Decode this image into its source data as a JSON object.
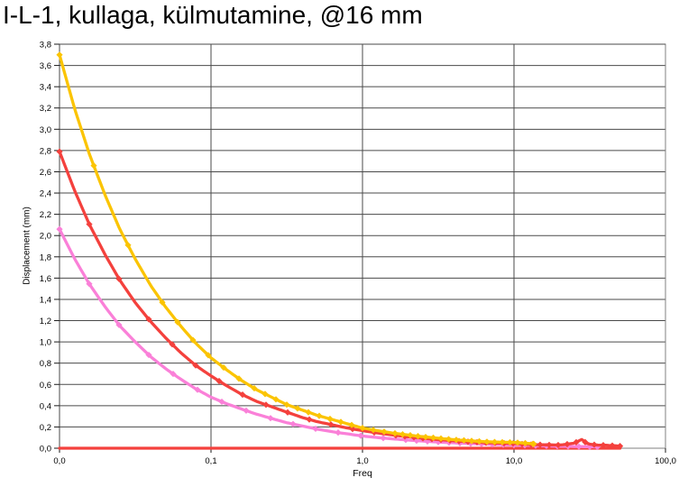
{
  "title": "I-L-1, kullaga, külmutamine, @16 mm",
  "chart_data": {
    "type": "line",
    "title": "I-L-1, kullaga, külmutamine, @16 mm",
    "xlabel": "Freq",
    "ylabel": "Displacement (mm)",
    "x_scale": "log",
    "xlim": [
      0.01,
      100
    ],
    "ylim": [
      0.0,
      3.8
    ],
    "grid": true,
    "legend": "none",
    "x_ticks": [
      {
        "value": 0.01,
        "label": "0,0"
      },
      {
        "value": 0.1,
        "label": "0,1"
      },
      {
        "value": 1.0,
        "label": "1,0"
      },
      {
        "value": 10.0,
        "label": "10,0"
      },
      {
        "value": 100.0,
        "label": "100,0"
      }
    ],
    "y_ticks": [
      "0,0",
      "0,2",
      "0,4",
      "0,6",
      "0,8",
      "1,0",
      "1,2",
      "1,4",
      "1,6",
      "1,8",
      "2,0",
      "2,2",
      "2,4",
      "2,6",
      "2,8",
      "3,0",
      "3,2",
      "3,4",
      "3,6",
      "3,8"
    ],
    "y_tick_step": 0.2,
    "colors": {
      "grid": "#4a4a4a",
      "frame": "#828282",
      "tick": "#1a1a1a",
      "yellow_series": "#fbc402",
      "red_series": "#f4413d",
      "pink_series": "#fa80d8"
    },
    "series": [
      {
        "name": "red-baseline",
        "color": "#f4413d",
        "marker": "none",
        "points": [
          [
            0.01,
            0.0
          ],
          [
            50.1,
            0.0
          ]
        ]
      },
      {
        "name": "pink-series",
        "color": "#fa80d8",
        "marker": "diamond",
        "points": [
          [
            0.01,
            2.06
          ],
          [
            0.0126,
            1.78
          ],
          [
            0.0158,
            1.54
          ],
          [
            0.02,
            1.33
          ],
          [
            0.025,
            1.15
          ],
          [
            0.0316,
            1.0
          ],
          [
            0.04,
            0.86
          ],
          [
            0.05,
            0.75
          ],
          [
            0.063,
            0.65
          ],
          [
            0.079,
            0.56
          ],
          [
            0.1,
            0.48
          ],
          [
            0.126,
            0.42
          ],
          [
            0.158,
            0.37
          ],
          [
            0.2,
            0.32
          ],
          [
            0.251,
            0.28
          ],
          [
            0.316,
            0.24
          ],
          [
            0.398,
            0.21
          ],
          [
            0.501,
            0.18
          ],
          [
            0.631,
            0.155
          ],
          [
            0.794,
            0.135
          ],
          [
            1.0,
            0.115
          ],
          [
            1.26,
            0.1
          ],
          [
            1.58,
            0.088
          ],
          [
            2.0,
            0.077
          ],
          [
            2.51,
            0.067
          ],
          [
            3.16,
            0.058
          ],
          [
            3.98,
            0.051
          ],
          [
            5.01,
            0.044
          ],
          [
            6.31,
            0.039
          ],
          [
            7.94,
            0.034
          ],
          [
            10.0,
            0.03
          ],
          [
            12.6,
            0.026
          ],
          [
            15.8,
            0.022
          ],
          [
            20.0,
            0.019
          ],
          [
            25.1,
            0.016
          ],
          [
            31.6,
            0.014
          ],
          [
            35.5,
            0.012
          ]
        ]
      },
      {
        "name": "red-series",
        "color": "#f4413d",
        "marker": "diamond",
        "points": [
          [
            0.01,
            2.79
          ],
          [
            0.0126,
            2.42
          ],
          [
            0.0158,
            2.1
          ],
          [
            0.02,
            1.82
          ],
          [
            0.025,
            1.58
          ],
          [
            0.0316,
            1.37
          ],
          [
            0.04,
            1.19
          ],
          [
            0.05,
            1.04
          ],
          [
            0.063,
            0.9
          ],
          [
            0.079,
            0.78
          ],
          [
            0.1,
            0.68
          ],
          [
            0.126,
            0.59
          ],
          [
            0.158,
            0.51
          ],
          [
            0.2,
            0.44
          ],
          [
            0.251,
            0.39
          ],
          [
            0.316,
            0.34
          ],
          [
            0.398,
            0.29
          ],
          [
            0.501,
            0.25
          ],
          [
            0.631,
            0.22
          ],
          [
            0.794,
            0.19
          ],
          [
            1.0,
            0.165
          ],
          [
            1.26,
            0.143
          ],
          [
            1.58,
            0.124
          ],
          [
            2.0,
            0.108
          ],
          [
            2.51,
            0.094
          ],
          [
            3.16,
            0.081
          ],
          [
            3.98,
            0.07
          ],
          [
            5.01,
            0.061
          ],
          [
            6.31,
            0.053
          ],
          [
            7.94,
            0.048
          ],
          [
            10.0,
            0.045
          ],
          [
            12.6,
            0.035
          ],
          [
            15.8,
            0.032
          ],
          [
            20.0,
            0.03
          ],
          [
            22.4,
            0.038
          ],
          [
            25.1,
            0.048
          ],
          [
            28.2,
            0.085
          ],
          [
            29.9,
            0.05
          ],
          [
            31.6,
            0.038
          ],
          [
            35.5,
            0.03
          ],
          [
            39.8,
            0.028
          ],
          [
            44.7,
            0.025
          ],
          [
            50.1,
            0.02
          ]
        ]
      },
      {
        "name": "yellow-series",
        "color": "#fbc402",
        "marker": "diamond",
        "points": [
          [
            0.01,
            3.7
          ],
          [
            0.0126,
            3.19
          ],
          [
            0.0158,
            2.76
          ],
          [
            0.02,
            2.38
          ],
          [
            0.025,
            2.06
          ],
          [
            0.0316,
            1.78
          ],
          [
            0.04,
            1.53
          ],
          [
            0.05,
            1.33
          ],
          [
            0.063,
            1.15
          ],
          [
            0.079,
            0.99
          ],
          [
            0.1,
            0.85
          ],
          [
            0.126,
            0.74
          ],
          [
            0.158,
            0.64
          ],
          [
            0.2,
            0.55
          ],
          [
            0.251,
            0.48
          ],
          [
            0.316,
            0.41
          ],
          [
            0.398,
            0.36
          ],
          [
            0.501,
            0.31
          ],
          [
            0.631,
            0.27
          ],
          [
            0.794,
            0.23
          ],
          [
            1.0,
            0.19
          ],
          [
            1.26,
            0.165
          ],
          [
            1.58,
            0.143
          ],
          [
            2.0,
            0.124
          ],
          [
            2.51,
            0.108
          ],
          [
            3.16,
            0.094
          ],
          [
            3.98,
            0.081
          ],
          [
            5.01,
            0.071
          ],
          [
            6.31,
            0.062
          ],
          [
            7.94,
            0.057
          ],
          [
            10.0,
            0.055
          ],
          [
            11.2,
            0.05
          ],
          [
            12.6,
            0.045
          ],
          [
            13.5,
            0.04
          ]
        ]
      }
    ]
  }
}
